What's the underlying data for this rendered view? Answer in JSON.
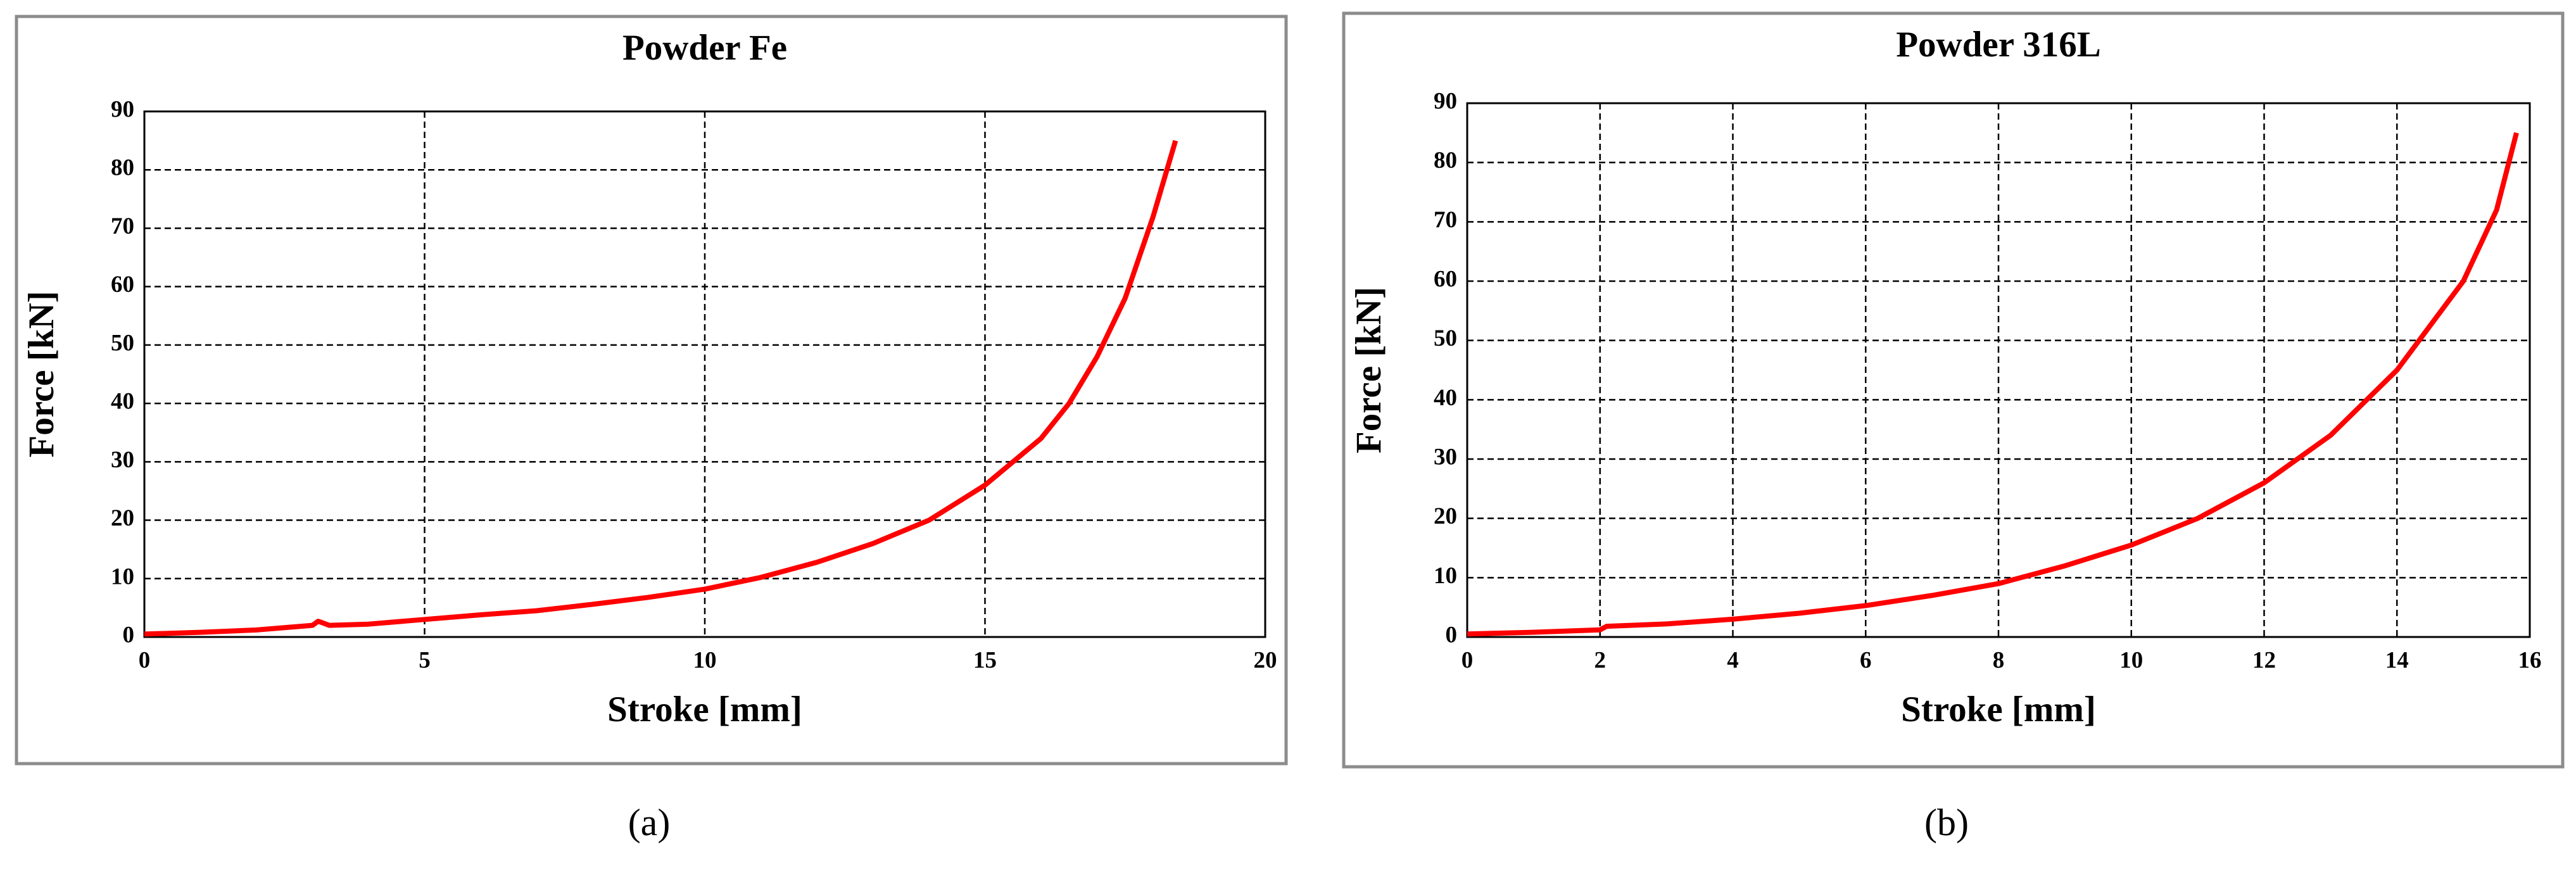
{
  "chart_data": [
    {
      "type": "line",
      "title": "Powder Fe",
      "caption": "(a)",
      "x_label": "Stroke [mm]",
      "y_label": "Force [kN]",
      "xlim": [
        0,
        20
      ],
      "xticks": [
        0,
        5,
        10,
        15,
        20
      ],
      "ylim": [
        0,
        90
      ],
      "yticks": [
        0,
        10,
        20,
        30,
        40,
        50,
        60,
        70,
        80,
        90
      ],
      "grid": true,
      "series": [
        {
          "color": "#ff0000",
          "x": [
            0,
            1,
            2,
            3,
            3.1,
            3.3,
            4,
            5,
            6,
            7,
            8,
            9,
            10,
            11,
            12,
            13,
            14,
            15,
            16,
            16.5,
            17,
            17.5,
            18,
            18.4
          ],
          "values": [
            0.5,
            0.8,
            1.2,
            2,
            2.7,
            2,
            2.2,
            3,
            3.8,
            4.5,
            5.6,
            6.8,
            8.2,
            10.2,
            12.8,
            16,
            20,
            26,
            34,
            40,
            48,
            58,
            72,
            85
          ]
        }
      ]
    },
    {
      "type": "line",
      "title": "Powder 316L",
      "caption": "(b)",
      "x_label": "Stroke [mm]",
      "y_label": "Force [kN]",
      "xlim": [
        0,
        16
      ],
      "xticks": [
        0,
        2,
        4,
        6,
        8,
        10,
        12,
        14,
        16
      ],
      "ylim": [
        0,
        90
      ],
      "yticks": [
        0,
        10,
        20,
        30,
        40,
        50,
        60,
        70,
        80,
        90
      ],
      "grid": true,
      "series": [
        {
          "color": "#ff0000",
          "x": [
            0,
            1,
            2,
            2.1,
            3,
            4,
            5,
            6,
            7,
            8,
            9,
            10,
            11,
            12,
            13,
            14,
            15,
            15.5,
            15.8
          ],
          "values": [
            0.5,
            0.8,
            1.2,
            1.8,
            2.2,
            3,
            4,
            5.3,
            7,
            9,
            12,
            15.5,
            20,
            26,
            34,
            45,
            60,
            72,
            85
          ]
        }
      ]
    }
  ]
}
